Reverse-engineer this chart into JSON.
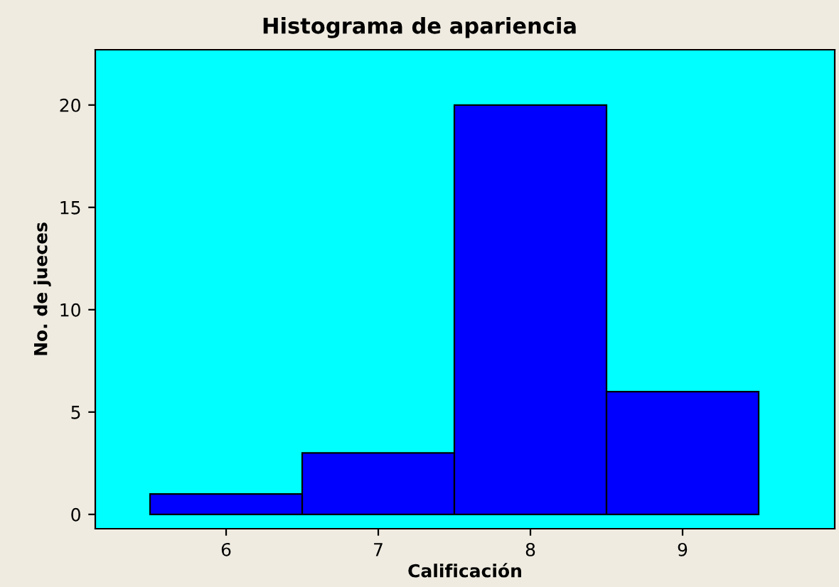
{
  "chart_data": {
    "type": "histogram",
    "title": "Histograma de apariencia",
    "xlabel": "Calificación",
    "ylabel": "No. de jueces",
    "bins": [
      5.5,
      6.5,
      7.5,
      8.5,
      9.5
    ],
    "values": [
      1,
      3,
      20,
      6
    ],
    "color": "#0000ff",
    "xlim": [
      5.14,
      10.0
    ],
    "xticks": [
      6,
      7,
      8,
      9
    ],
    "ylim": [
      -0.7,
      22.7
    ],
    "yticks": [
      0,
      5,
      10,
      15,
      20
    ],
    "grid": false
  }
}
